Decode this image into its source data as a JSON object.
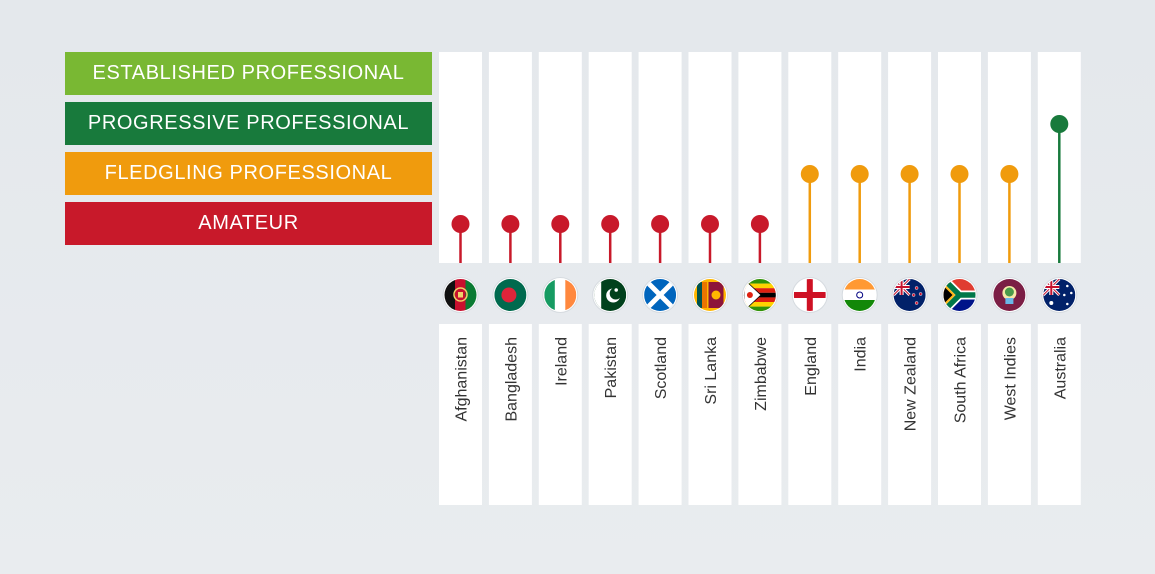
{
  "legend": [
    {
      "label": "ESTABLISHED PROFESSIONAL",
      "color": "#79b833"
    },
    {
      "label": "PROGRESSIVE PROFESSIONAL",
      "color": "#187a3c"
    },
    {
      "label": "FLEDGLING PROFESSIONAL",
      "color": "#f09b0d"
    },
    {
      "label": "AMATEUR",
      "color": "#c8192a"
    }
  ],
  "chart_data": {
    "type": "lollipop",
    "levels": [
      "AMATEUR",
      "FLEDGLING PROFESSIONAL",
      "PROGRESSIVE PROFESSIONAL",
      "ESTABLISHED PROFESSIONAL"
    ],
    "categories": [
      "Afghanistan",
      "Bangladesh",
      "Ireland",
      "Pakistan",
      "Scotland",
      "Sri Lanka",
      "Zimbabwe",
      "England",
      "India",
      "New Zealand",
      "South Africa",
      "West Indies",
      "Australia"
    ],
    "values": [
      "AMATEUR",
      "AMATEUR",
      "AMATEUR",
      "AMATEUR",
      "AMATEUR",
      "AMATEUR",
      "AMATEUR",
      "FLEDGLING PROFESSIONAL",
      "FLEDGLING PROFESSIONAL",
      "FLEDGLING PROFESSIONAL",
      "FLEDGLING PROFESSIONAL",
      "FLEDGLING PROFESSIONAL",
      "PROGRESSIVE PROFESSIONAL"
    ],
    "flag_icons": [
      "afghanistan-flag-icon",
      "bangladesh-flag-icon",
      "ireland-flag-icon",
      "pakistan-flag-icon",
      "scotland-flag-icon",
      "sri-lanka-flag-icon",
      "zimbabwe-flag-icon",
      "england-flag-icon",
      "india-flag-icon",
      "new-zealand-flag-icon",
      "south-africa-flag-icon",
      "west-indies-flag-icon",
      "australia-flag-icon"
    ]
  }
}
